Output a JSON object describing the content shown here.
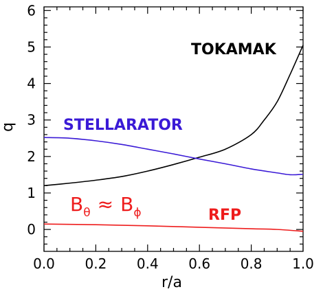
{
  "chart_data": {
    "type": "line",
    "title": "",
    "xlabel": "r/a",
    "ylabel": "q",
    "xlim": [
      0.0,
      1.0
    ],
    "ylim": [
      -0.6,
      6.1
    ],
    "xticks": [
      0.0,
      0.2,
      0.4,
      0.6,
      0.8,
      1.0
    ],
    "xtick_labels": [
      "0.0",
      "0.2",
      "0.4",
      "0.6",
      "0.8",
      "1.0"
    ],
    "yticks": [
      0,
      1,
      2,
      3,
      4,
      5,
      6
    ],
    "ytick_labels": [
      "0",
      "1",
      "2",
      "3",
      "4",
      "5",
      "6"
    ],
    "grid": false,
    "legend": "none",
    "series": [
      {
        "name": "TOKAMAK",
        "color": "#000000",
        "x": [
          0.0,
          0.1,
          0.2,
          0.3,
          0.4,
          0.5,
          0.6,
          0.7,
          0.8,
          0.85,
          0.9,
          0.95,
          1.0
        ],
        "y": [
          1.2,
          1.27,
          1.35,
          1.45,
          1.6,
          1.78,
          1.98,
          2.2,
          2.6,
          3.0,
          3.5,
          4.25,
          5.05
        ]
      },
      {
        "name": "STELLARATOR",
        "color": "#3a1ad6",
        "x": [
          0.0,
          0.1,
          0.2,
          0.3,
          0.4,
          0.5,
          0.6,
          0.7,
          0.8,
          0.9,
          0.95,
          1.0
        ],
        "y": [
          2.52,
          2.5,
          2.43,
          2.33,
          2.2,
          2.07,
          1.93,
          1.8,
          1.66,
          1.55,
          1.5,
          1.51
        ]
      },
      {
        "name": "RFP",
        "color": "#ee1c1c",
        "x": [
          0.0,
          0.2,
          0.4,
          0.6,
          0.8,
          0.9,
          1.0
        ],
        "y": [
          0.15,
          0.13,
          0.1,
          0.06,
          0.02,
          0.0,
          -0.05
        ]
      }
    ],
    "annotations": {
      "tokamak": {
        "text": "TOKAMAK",
        "color": "#000000"
      },
      "stellarator": {
        "text": "STELLARATOR",
        "color": "#3a1ad6"
      },
      "rfp": {
        "text": "RFP",
        "color": "#ee1c1c"
      },
      "b_relation": {
        "base_left": "B",
        "sub_left": "θ",
        "op": "≈",
        "base_right": "B",
        "sub_right": "ϕ",
        "color": "#ee1c1c"
      }
    }
  }
}
